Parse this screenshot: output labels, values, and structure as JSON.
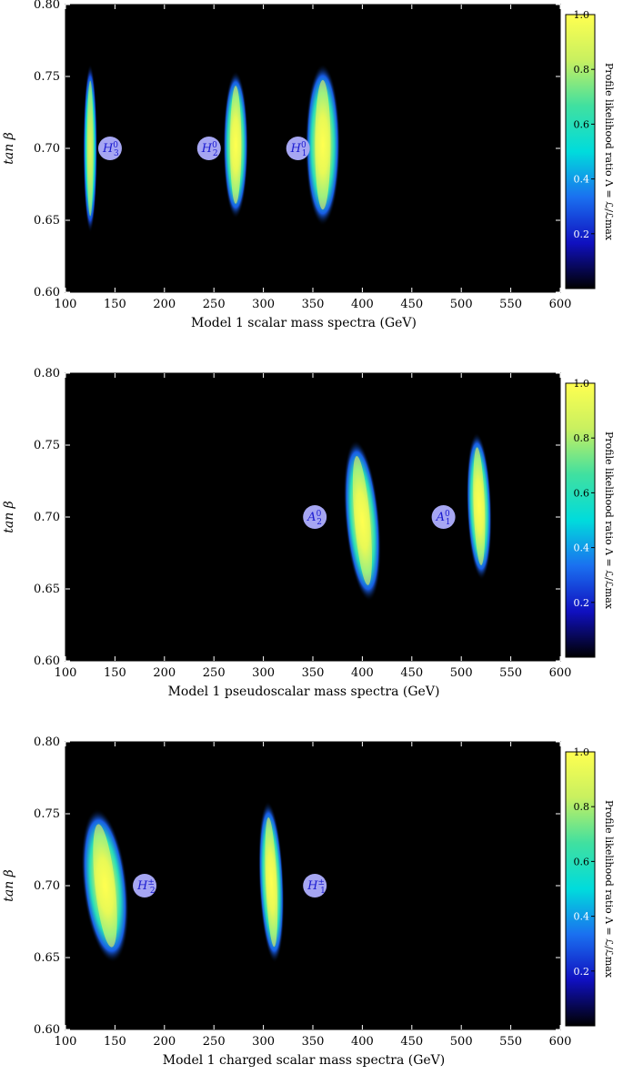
{
  "colors": {
    "background": "#000000",
    "colormap": [
      "#000000",
      "#1010c0",
      "#1a70f0",
      "#00dcdc",
      "#40e0a0",
      "#c8f060",
      "#ffff50"
    ],
    "label_fill": "#a6a6f2",
    "label_text": "#1a1ad0"
  },
  "chart_data": [
    {
      "type": "heatmap",
      "xlabel": "Model 1 scalar mass spectra (GeV)",
      "ylabel": "tan β",
      "xlim": [
        100,
        600
      ],
      "ylim": [
        0.6,
        0.8
      ],
      "x_ticks": [
        "100",
        "150",
        "200",
        "250",
        "300",
        "350",
        "400",
        "450",
        "500",
        "550",
        "600"
      ],
      "y_ticks": [
        "0.60",
        "0.65",
        "0.70",
        "0.75",
        "0.80"
      ],
      "colorbar_label": "Profile likelihood ratio Λ = ℒ/ℒmax",
      "colorbar_ticks": [
        "0.2",
        "0.4",
        "0.6",
        "0.8",
        "1.0"
      ],
      "blobs": [
        {
          "x": 125,
          "ymin": 0.645,
          "ymax": 0.755,
          "width_gev": 3,
          "peak": 0.9,
          "skew": 0
        },
        {
          "x": 272,
          "ymin": 0.655,
          "ymax": 0.75,
          "width_gev": 14,
          "peak": 1.0,
          "skew": 0
        },
        {
          "x": 360,
          "ymin": 0.65,
          "ymax": 0.755,
          "width_gev": 24,
          "peak": 1.0,
          "skew": 0
        }
      ],
      "labels": [
        {
          "base": "H",
          "sup": "0",
          "sub": "3",
          "x": 145,
          "y": 0.7
        },
        {
          "base": "H",
          "sup": "0",
          "sub": "2",
          "x": 245,
          "y": 0.7
        },
        {
          "base": "H",
          "sup": "0",
          "sub": "1",
          "x": 335,
          "y": 0.7
        }
      ]
    },
    {
      "type": "heatmap",
      "xlabel": "Model 1 pseudoscalar mass spectra (GeV)",
      "ylabel": "tan β",
      "xlim": [
        100,
        600
      ],
      "ylim": [
        0.6,
        0.8
      ],
      "x_ticks": [
        "100",
        "150",
        "200",
        "250",
        "300",
        "350",
        "400",
        "450",
        "500",
        "550",
        "600"
      ],
      "y_ticks": [
        "0.60",
        "0.65",
        "0.70",
        "0.75",
        "0.80"
      ],
      "colorbar_label": "Profile likelihood ratio Λ = ℒ/ℒmax",
      "colorbar_ticks": [
        "0.2",
        "0.4",
        "0.6",
        "0.8",
        "1.0"
      ],
      "blobs": [
        {
          "x": 400,
          "ymin": 0.645,
          "ymax": 0.75,
          "width_gev": 24,
          "peak": 1.0,
          "skew": -20
        },
        {
          "x": 518,
          "ymin": 0.66,
          "ymax": 0.755,
          "width_gev": 14,
          "peak": 1.0,
          "skew": -8
        }
      ],
      "labels": [
        {
          "base": "A",
          "sup": "0",
          "sub": "2",
          "x": 352,
          "y": 0.7
        },
        {
          "base": "A",
          "sup": "0",
          "sub": "1",
          "x": 482,
          "y": 0.7
        }
      ]
    },
    {
      "type": "heatmap",
      "xlabel": "Model 1 charged scalar mass spectra (GeV)",
      "ylabel": "tan β",
      "xlim": [
        100,
        600
      ],
      "ylim": [
        0.6,
        0.8
      ],
      "x_ticks": [
        "100",
        "150",
        "200",
        "250",
        "300",
        "350",
        "400",
        "450",
        "500",
        "550",
        "600"
      ],
      "y_ticks": [
        "0.60",
        "0.65",
        "0.70",
        "0.75",
        "0.80"
      ],
      "colorbar_label": "Profile likelihood ratio Λ = ℒ/ℒmax",
      "colorbar_ticks": [
        "0.2",
        "0.4",
        "0.6",
        "0.8",
        "1.0"
      ],
      "blobs": [
        {
          "x": 140,
          "ymin": 0.65,
          "ymax": 0.75,
          "width_gev": 34,
          "peak": 1.0,
          "skew": -25
        },
        {
          "x": 308,
          "ymin": 0.65,
          "ymax": 0.755,
          "width_gev": 14,
          "peak": 1.0,
          "skew": -10
        }
      ],
      "labels": [
        {
          "base": "H",
          "sup": "±",
          "sub": "2",
          "x": 180,
          "y": 0.7
        },
        {
          "base": "H",
          "sup": "±",
          "sub": "1",
          "x": 352,
          "y": 0.7
        }
      ]
    }
  ]
}
